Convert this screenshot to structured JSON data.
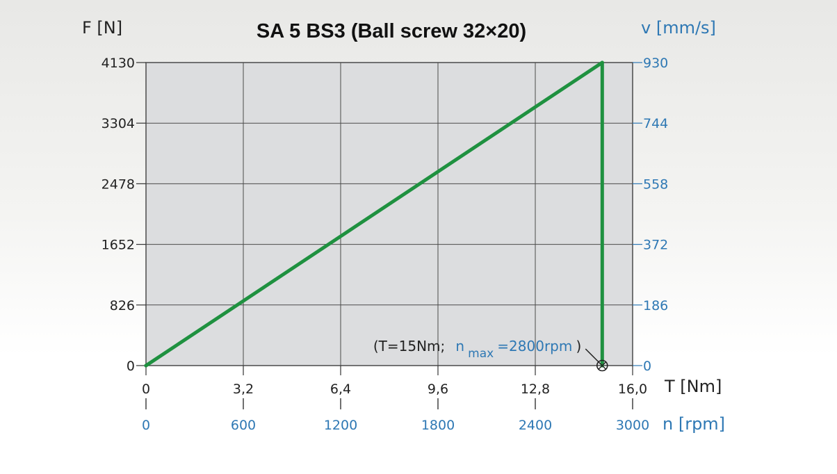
{
  "chart_data": {
    "type": "line",
    "title": "SA 5   BS3 (Ball screw 32×20)",
    "y_left_label": "F [N]",
    "y_right_label": "v [mm/s]",
    "x_label": "T [Nm]",
    "x2_label": "n [rpm]",
    "x_ticks": [
      "0",
      "3,2",
      "6,4",
      "9,6",
      "12,8",
      "16,0"
    ],
    "x2_ticks": [
      "0",
      "600",
      "1200",
      "1800",
      "2400",
      "3000"
    ],
    "y_left_ticks": [
      "0",
      "826",
      "1652",
      "2478",
      "3304",
      "4130"
    ],
    "y_right_ticks": [
      "0",
      "186",
      "372",
      "558",
      "744",
      "930"
    ],
    "xlim": [
      0,
      16
    ],
    "ylim": [
      0,
      4130
    ],
    "grid": true,
    "series": [
      {
        "color": "#1f9140",
        "x": [
          0,
          15,
          15
        ],
        "y": [
          0,
          4130,
          0
        ]
      }
    ],
    "annotation": {
      "prefix": "(T=15Nm;",
      "n_symbol": "n",
      "n_subscript": "max",
      "value": "=2800rpm",
      "suffix": ")",
      "x": 15,
      "y": 0
    }
  },
  "colors": {
    "plot_bg": "#dcdddf",
    "grid": "#4a4a4a",
    "line": "#1f9140",
    "blue": "#2e78b4"
  }
}
